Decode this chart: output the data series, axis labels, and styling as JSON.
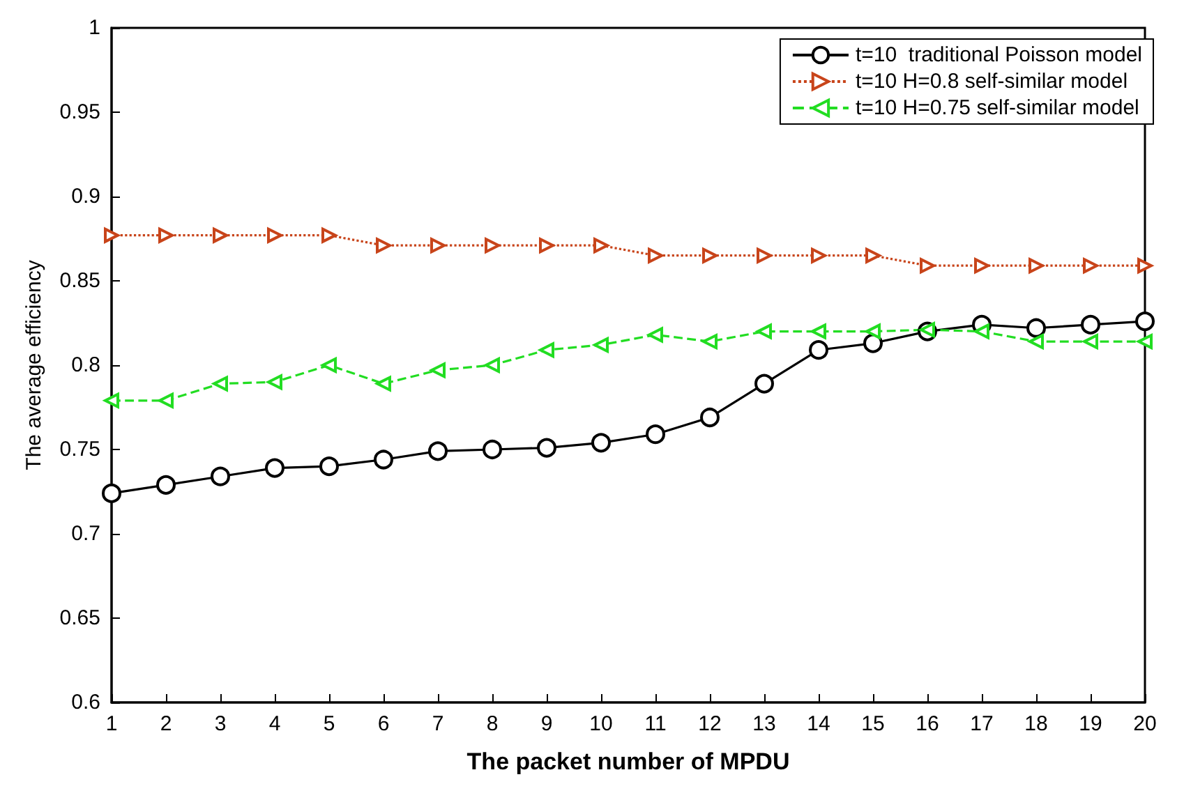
{
  "chart_data": {
    "type": "line",
    "xlabel": "The packet number of MPDU",
    "ylabel": "The average efficiency",
    "x": [
      1,
      2,
      3,
      4,
      5,
      6,
      7,
      8,
      9,
      10,
      11,
      12,
      13,
      14,
      15,
      16,
      17,
      18,
      19,
      20
    ],
    "series": [
      {
        "name": "t=10  traditional Poisson model",
        "color": "#000000",
        "marker": "circle",
        "line_style": "solid",
        "values": [
          0.724,
          0.729,
          0.734,
          0.739,
          0.74,
          0.744,
          0.749,
          0.75,
          0.751,
          0.754,
          0.759,
          0.769,
          0.789,
          0.809,
          0.813,
          0.82,
          0.824,
          0.822,
          0.824,
          0.826
        ]
      },
      {
        "name": "t=10 H=0.8 self-similar model",
        "color": "#c8441a",
        "marker": "triangle-right",
        "line_style": "dotted",
        "values": [
          0.877,
          0.877,
          0.877,
          0.877,
          0.877,
          0.871,
          0.871,
          0.871,
          0.871,
          0.871,
          0.865,
          0.865,
          0.865,
          0.865,
          0.865,
          0.859,
          0.859,
          0.859,
          0.859,
          0.859
        ]
      },
      {
        "name": "t=10 H=0.75 self-similar model",
        "color": "#22dd22",
        "marker": "triangle-left",
        "line_style": "dashed",
        "values": [
          0.779,
          0.779,
          0.789,
          0.79,
          0.8,
          0.789,
          0.797,
          0.8,
          0.809,
          0.812,
          0.818,
          0.814,
          0.82,
          0.82,
          0.82,
          0.821,
          0.82,
          0.814,
          0.814,
          0.814
        ]
      }
    ],
    "xlim": [
      1,
      20
    ],
    "xticks": [
      1,
      2,
      3,
      4,
      5,
      6,
      7,
      8,
      9,
      10,
      11,
      12,
      13,
      14,
      15,
      16,
      17,
      18,
      19,
      20
    ],
    "ylim": [
      0.6,
      1
    ],
    "yticks": [
      0.6,
      0.65,
      0.7,
      0.75,
      0.8,
      0.85,
      0.9,
      0.95,
      1
    ],
    "grid": false,
    "legend": "top right"
  }
}
